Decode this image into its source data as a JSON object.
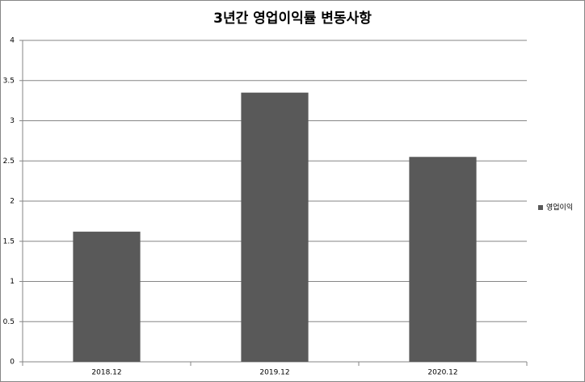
{
  "chart_data": {
    "type": "bar",
    "title": "3년간 영업이익률 변동사항",
    "categories": [
      "2018.12",
      "2019.12",
      "2020.12"
    ],
    "series": [
      {
        "name": "영업이익",
        "color": "#595959",
        "values": [
          1.62,
          3.35,
          2.55
        ]
      }
    ],
    "ylim": [
      0,
      4
    ],
    "yticks": [
      0,
      0.5,
      1,
      1.5,
      2,
      2.5,
      3,
      3.5,
      4
    ],
    "grid": true,
    "legend": "right"
  }
}
